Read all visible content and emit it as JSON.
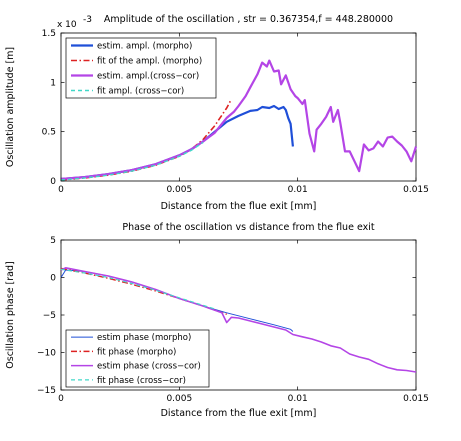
{
  "chart_data": [
    {
      "type": "line",
      "title": "Amplitude of the oscillation , str = 0.367354,f = 448.280000",
      "xlabel": "Distance from the flue exit [mm]",
      "ylabel": "Oscillation amplitude [m]",
      "exponent_label": "x 10",
      "exponent_power": "-3",
      "xlim": [
        0,
        0.015
      ],
      "ylim": [
        0,
        0.0015
      ],
      "xticks": [
        0,
        0.005,
        0.01,
        0.015
      ],
      "xtick_labels": [
        "0",
        "0.005",
        "0.01",
        "0.015"
      ],
      "yticks": [
        0,
        0.0005,
        0.001,
        0.0015
      ],
      "ytick_labels": [
        "0",
        "0.5",
        "1",
        "1.5"
      ],
      "grid": false,
      "legend_position": "top-left",
      "series": [
        {
          "name": "estim. ampl. (morpho)",
          "color": "#1f4fd8",
          "style": "solid",
          "width": 2.2,
          "x": [
            0,
            0.001,
            0.002,
            0.003,
            0.004,
            0.005,
            0.0055,
            0.006,
            0.0065,
            0.007,
            0.0075,
            0.008,
            0.0083,
            0.0085,
            0.0088,
            0.009,
            0.0092,
            0.0094,
            0.0095,
            0.0096,
            0.0097,
            0.0098
          ],
          "y": [
            2e-05,
            4e-05,
            7e-05,
            0.00011,
            0.00017,
            0.00026,
            0.00032,
            0.0004,
            0.0005,
            0.0006,
            0.00066,
            0.00071,
            0.00072,
            0.00075,
            0.00074,
            0.00076,
            0.00073,
            0.00075,
            0.00072,
            0.00064,
            0.00058,
            0.00035
          ]
        },
        {
          "name": "fit of the ampl. (morpho)",
          "color": "#dd2222",
          "style": "dashdot",
          "width": 1.6,
          "x": [
            0,
            0.001,
            0.002,
            0.003,
            0.004,
            0.005,
            0.0055,
            0.006,
            0.0065,
            0.007,
            0.0072
          ],
          "y": [
            1e-05,
            3e-05,
            6e-05,
            0.0001,
            0.00016,
            0.00025,
            0.00032,
            0.00042,
            0.00056,
            0.00074,
            0.00083
          ]
        },
        {
          "name": "estim. ampl.(cross−cor)",
          "color": "#b445e6",
          "style": "solid",
          "width": 2.2,
          "x": [
            0,
            0.001,
            0.002,
            0.003,
            0.004,
            0.005,
            0.0055,
            0.006,
            0.0065,
            0.0068,
            0.007,
            0.0073,
            0.0075,
            0.0078,
            0.008,
            0.0083,
            0.0085,
            0.0087,
            0.0088,
            0.009,
            0.0092,
            0.0093,
            0.0095,
            0.0097,
            0.0099,
            0.01,
            0.0102,
            0.0103,
            0.0105,
            0.0107,
            0.0108,
            0.011,
            0.0112,
            0.0114,
            0.0115,
            0.0117,
            0.0118,
            0.012,
            0.0122,
            0.0124,
            0.0126,
            0.0128,
            0.013,
            0.0132,
            0.0134,
            0.0136,
            0.0138,
            0.014,
            0.0142,
            0.0144,
            0.0146,
            0.0148,
            0.015
          ],
          "y": [
            2e-05,
            4e-05,
            7e-05,
            0.00011,
            0.00017,
            0.00026,
            0.00032,
            0.0004,
            0.00049,
            0.00058,
            0.00064,
            0.0007,
            0.00076,
            0.00086,
            0.00095,
            0.00108,
            0.0012,
            0.00116,
            0.00122,
            0.00111,
            0.00112,
            0.00098,
            0.00107,
            0.00093,
            0.00086,
            0.00084,
            0.00078,
            0.00082,
            0.00048,
            0.0003,
            0.00052,
            0.00058,
            0.00065,
            0.00075,
            0.0006,
            0.00072,
            0.00059,
            0.0003,
            0.0003,
            0.0002,
            0.0001,
            0.00037,
            0.00031,
            0.00033,
            0.0004,
            0.00035,
            0.00044,
            0.00045,
            0.0004,
            0.00036,
            0.0003,
            0.0002,
            0.00035
          ]
        },
        {
          "name": "fit ampl. (cross−cor)",
          "color": "#40d8c8",
          "style": "dashed",
          "width": 1.4,
          "x": [
            0,
            0.001,
            0.002,
            0.003,
            0.004,
            0.005,
            0.0055,
            0.006
          ],
          "y": [
            1e-05,
            3e-05,
            6e-05,
            0.0001,
            0.00016,
            0.00025,
            0.00031,
            0.00039
          ]
        }
      ]
    },
    {
      "type": "line",
      "title": "Phase of the oscillation vs distance from the flue exit",
      "xlabel": "Distance from the flue exit [mm]",
      "ylabel": "Oscillation phase [rad]",
      "xlim": [
        0,
        0.015
      ],
      "ylim": [
        -15,
        5
      ],
      "xticks": [
        0,
        0.005,
        0.01,
        0.015
      ],
      "xtick_labels": [
        "0",
        "0.005",
        "0.01",
        "0.015"
      ],
      "yticks": [
        -15,
        -10,
        -5,
        0,
        5
      ],
      "ytick_labels": [
        "−15",
        "−10",
        "−5",
        "0",
        "5"
      ],
      "grid": false,
      "legend_position": "bottom-left",
      "series": [
        {
          "name": "estim phase (morpho)",
          "color": "#1f4fd8",
          "style": "solid",
          "width": 1.0,
          "x": [
            0,
            0.0002,
            0.001,
            0.002,
            0.003,
            0.004,
            0.005,
            0.006,
            0.007,
            0.008,
            0.009,
            0.0097,
            0.0098
          ],
          "y": [
            0,
            1,
            0.8,
            0.2,
            -0.6,
            -1.6,
            -2.8,
            -3.8,
            -4.7,
            -5.5,
            -6.3,
            -6.9,
            -7.2
          ]
        },
        {
          "name": "fit phase (morpho)",
          "color": "#dd2222",
          "style": "dashdot",
          "width": 1.4,
          "x": [
            0,
            0.001,
            0.002,
            0.003,
            0.004,
            0.005,
            0.006,
            0.007
          ],
          "y": [
            1.2,
            0.6,
            -0.1,
            -0.9,
            -1.8,
            -2.8,
            -3.8,
            -4.9
          ]
        },
        {
          "name": "estim phase (cross−cor)",
          "color": "#b445e6",
          "style": "solid",
          "width": 1.6,
          "x": [
            0,
            0.0002,
            0.001,
            0.002,
            0.003,
            0.004,
            0.005,
            0.006,
            0.0068,
            0.007,
            0.0072,
            0.0075,
            0.008,
            0.0085,
            0.009,
            0.0095,
            0.0098,
            0.0102,
            0.0106,
            0.011,
            0.0114,
            0.0118,
            0.0122,
            0.0126,
            0.013,
            0.0134,
            0.0138,
            0.0142,
            0.0146,
            0.015
          ],
          "y": [
            1.0,
            1.3,
            0.8,
            0.2,
            -0.6,
            -1.6,
            -2.8,
            -3.8,
            -4.7,
            -6.0,
            -5.3,
            -5.4,
            -5.8,
            -6.2,
            -6.6,
            -7.0,
            -7.6,
            -7.9,
            -8.2,
            -8.6,
            -9.1,
            -9.4,
            -10.2,
            -10.6,
            -10.9,
            -11.5,
            -12.0,
            -12.3,
            -12.4,
            -12.6
          ]
        },
        {
          "name": "fit phase (cross−cor)",
          "color": "#40d8c8",
          "style": "dashed",
          "width": 1.2,
          "x": [
            0,
            0.001,
            0.002,
            0.003,
            0.004,
            0.005,
            0.006,
            0.0065
          ],
          "y": [
            1.1,
            0.6,
            0.0,
            -0.8,
            -1.7,
            -2.7,
            -3.7,
            -4.2
          ]
        }
      ]
    }
  ]
}
